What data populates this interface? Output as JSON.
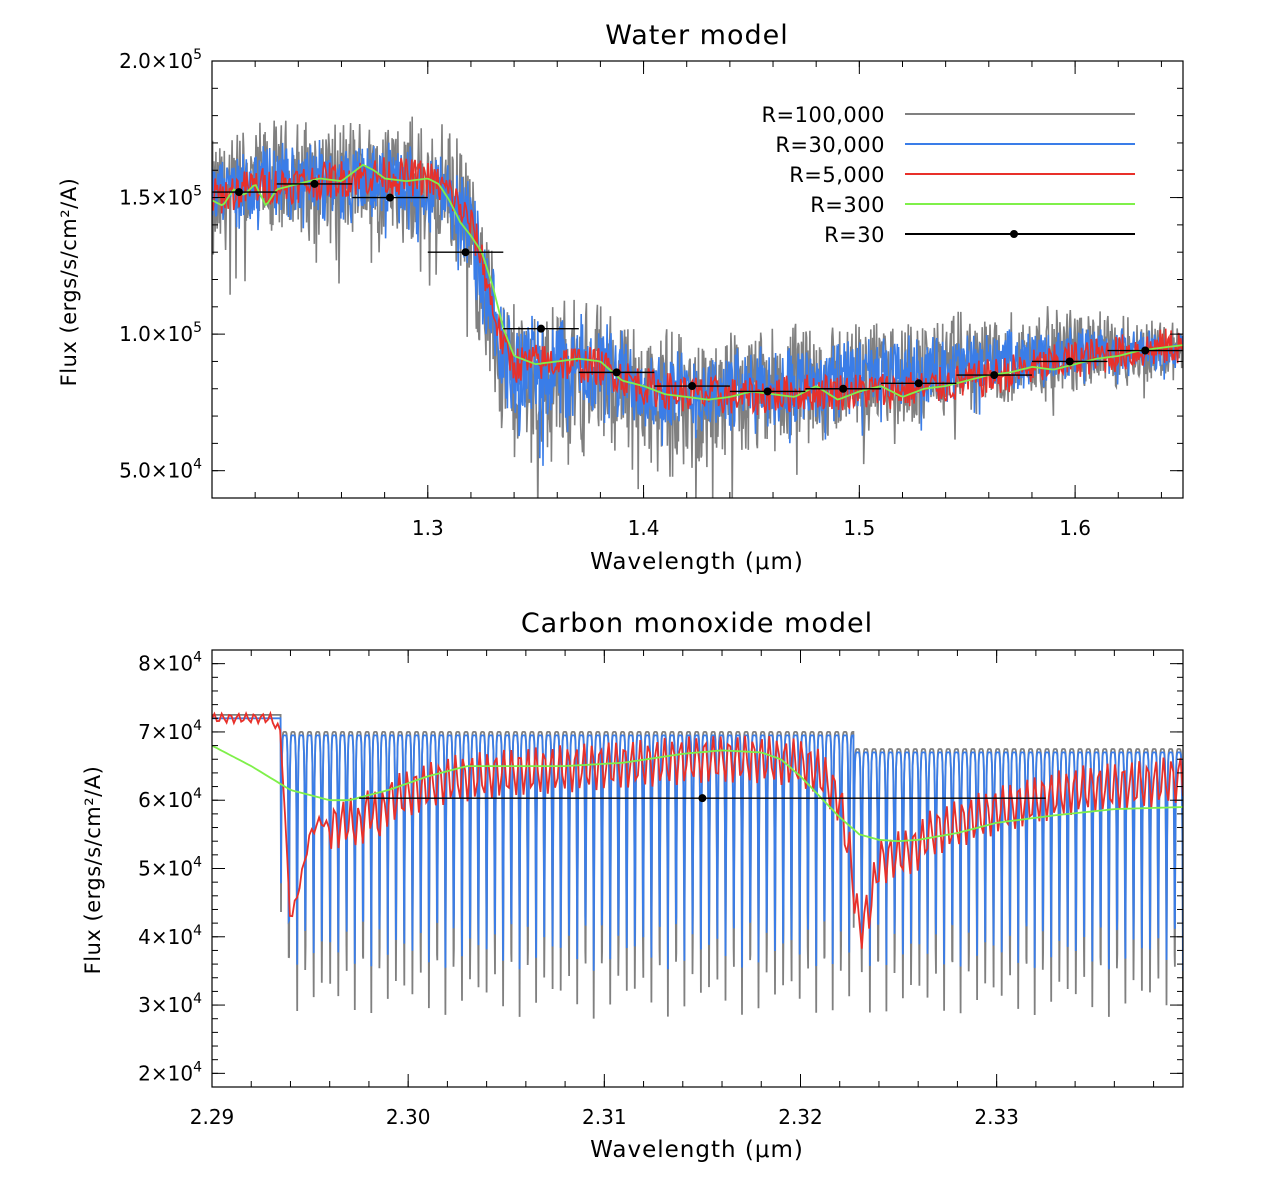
{
  "chart_data": [
    {
      "type": "line",
      "title": "Water model",
      "xlabel": "Wavelength (μm)",
      "ylabel": "Flux (ergs/s/cm²/A)",
      "xlim": [
        1.2,
        1.65
      ],
      "ylim": [
        40000,
        200000
      ],
      "xticks": [
        1.3,
        1.4,
        1.5,
        1.6
      ],
      "xtick_labels": [
        "1.3",
        "1.4",
        "1.5",
        "1.6"
      ],
      "yticks": [
        50000,
        100000,
        150000,
        200000
      ],
      "ytick_labels": [
        [
          "5.0×10",
          "4"
        ],
        [
          "1.0×10",
          "5"
        ],
        [
          "1.5×10",
          "5"
        ],
        [
          "2.0×10",
          "5"
        ]
      ],
      "legend_position": "top-right",
      "legend": [
        {
          "label": "R=100,000",
          "color": "#808080",
          "marker": false
        },
        {
          "label": "R=30,000",
          "color": "#3a7de8",
          "marker": false
        },
        {
          "label": "R=5,000",
          "color": "#e8302a",
          "marker": false
        },
        {
          "label": "R=300",
          "color": "#7ff04a",
          "marker": false
        },
        {
          "label": "R=30",
          "color": "#000000",
          "marker": true
        }
      ],
      "series": [
        {
          "name": "R=100,000",
          "color": "#808080",
          "kind": "noisy-band",
          "x": [
            1.2,
            1.22,
            1.24,
            1.26,
            1.28,
            1.3,
            1.31,
            1.32,
            1.33,
            1.335,
            1.34,
            1.36,
            1.38,
            1.4,
            1.42,
            1.45,
            1.48,
            1.5,
            1.53,
            1.56,
            1.6,
            1.65
          ],
          "lower": [
            118000,
            130000,
            131000,
            131000,
            130000,
            130000,
            126000,
            105000,
            72000,
            57000,
            48000,
            50000,
            53000,
            52000,
            47000,
            50000,
            56000,
            60000,
            64000,
            70000,
            76000,
            82000
          ],
          "upper": [
            175000,
            180000,
            182000,
            183000,
            183000,
            181000,
            178000,
            168000,
            135000,
            122000,
            118000,
            118000,
            115000,
            108000,
            103000,
            104000,
            108000,
            108000,
            109000,
            110000,
            112000,
            107000
          ]
        },
        {
          "name": "R=30,000",
          "color": "#3a7de8",
          "kind": "noisy-band",
          "x": [
            1.2,
            1.22,
            1.24,
            1.26,
            1.28,
            1.3,
            1.31,
            1.32,
            1.33,
            1.335,
            1.34,
            1.36,
            1.38,
            1.4,
            1.42,
            1.45,
            1.48,
            1.5,
            1.53,
            1.56,
            1.6,
            1.65
          ],
          "lower": [
            135000,
            140000,
            141000,
            140000,
            140000,
            140000,
            136000,
            115000,
            80000,
            66000,
            60000,
            62000,
            64000,
            63000,
            60000,
            62000,
            66000,
            69000,
            72000,
            77000,
            82000,
            87000
          ],
          "upper": [
            166000,
            171000,
            172000,
            172000,
            172000,
            170000,
            167000,
            160000,
            126000,
            115000,
            112000,
            112000,
            108000,
            100000,
            96000,
            97000,
            100000,
            100000,
            101000,
            102000,
            104000,
            102000
          ]
        },
        {
          "name": "R=5,000",
          "color": "#e8302a",
          "kind": "noisy-line",
          "x": [
            1.2,
            1.22,
            1.24,
            1.26,
            1.28,
            1.3,
            1.31,
            1.32,
            1.325,
            1.33,
            1.335,
            1.34,
            1.36,
            1.38,
            1.4,
            1.42,
            1.45,
            1.48,
            1.5,
            1.53,
            1.56,
            1.6,
            1.65
          ],
          "y": [
            150000,
            154000,
            155000,
            157000,
            158000,
            157000,
            152000,
            140000,
            128000,
            110000,
            96000,
            89000,
            90000,
            88000,
            81000,
            78000,
            77000,
            79000,
            79000,
            80000,
            84000,
            91000,
            96000
          ],
          "amplitude": 7000
        },
        {
          "name": "R=300",
          "color": "#7ff04a",
          "kind": "line",
          "x": [
            1.2,
            1.205,
            1.21,
            1.215,
            1.22,
            1.225,
            1.23,
            1.24,
            1.25,
            1.26,
            1.27,
            1.275,
            1.28,
            1.29,
            1.3,
            1.305,
            1.31,
            1.315,
            1.32,
            1.325,
            1.33,
            1.335,
            1.34,
            1.35,
            1.36,
            1.37,
            1.38,
            1.39,
            1.4,
            1.41,
            1.42,
            1.43,
            1.44,
            1.45,
            1.46,
            1.47,
            1.48,
            1.49,
            1.5,
            1.51,
            1.52,
            1.53,
            1.54,
            1.55,
            1.56,
            1.57,
            1.58,
            1.59,
            1.6,
            1.61,
            1.62,
            1.63,
            1.64,
            1.65
          ],
          "y": [
            149000,
            147000,
            153000,
            151000,
            155000,
            147000,
            153000,
            155000,
            157000,
            156000,
            162000,
            160000,
            157000,
            156000,
            157000,
            155000,
            149000,
            141000,
            136000,
            130000,
            118000,
            102000,
            92000,
            89000,
            90000,
            91000,
            90000,
            83000,
            81000,
            78000,
            77000,
            76000,
            77000,
            79000,
            78000,
            77000,
            81000,
            76000,
            79000,
            81000,
            77000,
            80000,
            81000,
            83000,
            85000,
            86000,
            88000,
            87000,
            89000,
            91000,
            92000,
            94000,
            95000,
            96000
          ]
        },
        {
          "name": "R=30",
          "color": "#000000",
          "kind": "binned",
          "bin_half_width": 0.0175,
          "x": [
            1.2125,
            1.2475,
            1.2825,
            1.3175,
            1.3525,
            1.3875,
            1.4225,
            1.4575,
            1.4925,
            1.5275,
            1.5625,
            1.5975,
            1.6325
          ],
          "y": [
            152000,
            155000,
            150000,
            130000,
            102000,
            86000,
            81000,
            79000,
            80000,
            82000,
            85000,
            90000,
            94000
          ]
        }
      ]
    },
    {
      "type": "line",
      "title": "Carbon monoxide model",
      "xlabel": "Wavelength (μm)",
      "ylabel": "Flux (ergs/s/cm²/A)",
      "xlim": [
        2.29,
        2.3395
      ],
      "ylim": [
        18000,
        82000
      ],
      "xticks": [
        2.29,
        2.3,
        2.31,
        2.32,
        2.33
      ],
      "xtick_labels": [
        "2.29",
        "2.30",
        "2.31",
        "2.32",
        "2.33"
      ],
      "yticks": [
        20000,
        30000,
        40000,
        50000,
        60000,
        70000,
        80000
      ],
      "ytick_labels": [
        [
          "2×10",
          "4"
        ],
        [
          "3×10",
          "4"
        ],
        [
          "4×10",
          "4"
        ],
        [
          "5×10",
          "4"
        ],
        [
          "6×10",
          "4"
        ],
        [
          "7×10",
          "4"
        ],
        [
          "8×10",
          "4"
        ]
      ],
      "band_heads": [
        2.2935,
        2.3227
      ],
      "series": [
        {
          "name": "R=100,000",
          "color": "#808080",
          "kind": "absorption-lines",
          "line_spacing": 0.00042,
          "continuum": 70000,
          "line_min": 28000
        },
        {
          "name": "R=30,000",
          "color": "#3a7de8",
          "kind": "absorption-lines",
          "line_spacing": 0.00042,
          "continuum": 69500,
          "line_min": 35000
        },
        {
          "name": "R=5,000",
          "color": "#e8302a",
          "kind": "line",
          "x": [
            2.29,
            2.293,
            2.2935,
            2.294,
            2.2945,
            2.295,
            2.2955,
            2.296,
            2.297,
            2.2975,
            2.298,
            2.2985,
            2.299,
            2.3,
            2.302,
            2.305,
            2.31,
            2.315,
            2.318,
            2.32,
            2.321,
            2.322,
            2.3225,
            2.323,
            2.3235,
            2.324,
            2.325,
            2.326,
            2.3265,
            2.327,
            2.328,
            2.329,
            2.33,
            2.332,
            2.334,
            2.336,
            2.338,
            2.339,
            2.3395
          ],
          "y": [
            72000,
            72000,
            70000,
            42000,
            48000,
            55000,
            57000,
            56000,
            57000,
            56000,
            59000,
            57000,
            60000,
            61000,
            63000,
            64000,
            65000,
            66000,
            66000,
            65500,
            64000,
            60000,
            52000,
            41000,
            44000,
            51000,
            52000,
            53000,
            55000,
            55500,
            56500,
            57500,
            58500,
            60000,
            61500,
            62000,
            62500,
            63000,
            63500
          ],
          "amplitude": 3500
        },
        {
          "name": "R=300",
          "color": "#7ff04a",
          "kind": "line",
          "x": [
            2.29,
            2.292,
            2.294,
            2.296,
            2.297,
            2.299,
            2.301,
            2.303,
            2.305,
            2.308,
            2.311,
            2.314,
            2.316,
            2.318,
            2.319,
            2.32,
            2.321,
            2.322,
            2.323,
            2.324,
            2.325,
            2.326,
            2.328,
            2.33,
            2.333,
            2.336,
            2.3395
          ],
          "y": [
            68000,
            65000,
            61500,
            60000,
            60000,
            61500,
            63500,
            65000,
            65000,
            65000,
            65500,
            66800,
            67300,
            67000,
            66000,
            63500,
            60500,
            57500,
            55000,
            54200,
            54000,
            54200,
            55200,
            56700,
            57800,
            58700,
            59000
          ]
        },
        {
          "name": "R=30",
          "color": "#000000",
          "kind": "binned",
          "bin_half_width": 0.0175,
          "x": [
            2.315
          ],
          "y": [
            60300
          ]
        }
      ]
    }
  ]
}
